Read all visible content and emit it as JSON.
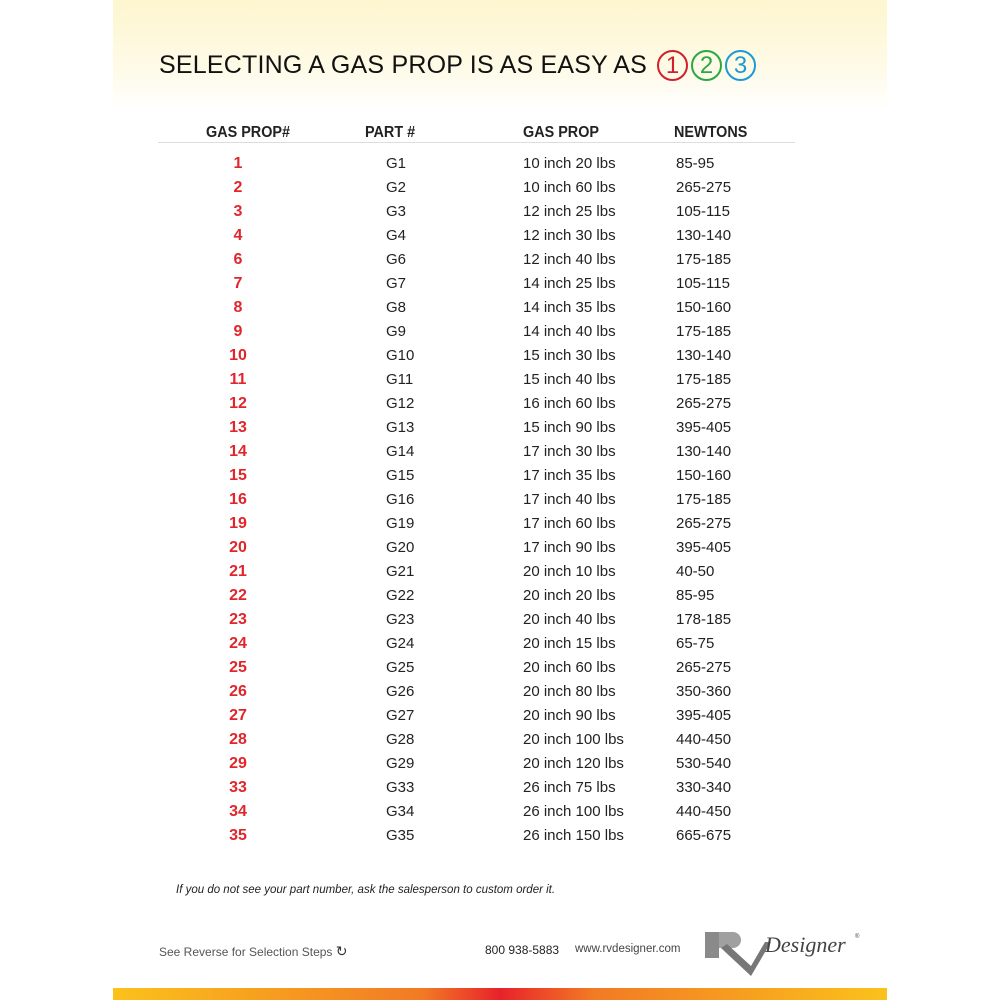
{
  "title": {
    "text": "SELECTING A GAS PROP IS AS EASY AS",
    "steps": [
      {
        "n": "1",
        "color": "#d0202a"
      },
      {
        "n": "2",
        "color": "#2aa844"
      },
      {
        "n": "3",
        "color": "#1c9ad6"
      }
    ]
  },
  "table": {
    "headers": [
      "GAS PROP#",
      "PART #",
      "GAS PROP",
      "NEWTONS"
    ],
    "rows": [
      [
        "1",
        "G1",
        "10 inch 20 lbs",
        "85-95"
      ],
      [
        "2",
        "G2",
        "10 inch 60 lbs",
        "265-275"
      ],
      [
        "3",
        "G3",
        "12 inch 25 lbs",
        "105-115"
      ],
      [
        "4",
        "G4",
        "12 inch 30 lbs",
        "130-140"
      ],
      [
        "6",
        "G6",
        "12 inch 40 lbs",
        "175-185"
      ],
      [
        "7",
        "G7",
        "14 inch 25 lbs",
        "105-115"
      ],
      [
        "8",
        "G8",
        "14 inch 35 lbs",
        "150-160"
      ],
      [
        "9",
        "G9",
        "14 inch 40 lbs",
        "175-185"
      ],
      [
        "10",
        "G10",
        "15 inch 30 lbs",
        "130-140"
      ],
      [
        "11",
        "G11",
        "15 inch 40 lbs",
        "175-185"
      ],
      [
        "12",
        "G12",
        "16 inch 60 lbs",
        "265-275"
      ],
      [
        "13",
        "G13",
        "15 inch 90 lbs",
        "395-405"
      ],
      [
        "14",
        "G14",
        "17 inch 30 lbs",
        "130-140"
      ],
      [
        "15",
        "G15",
        "17 inch 35 lbs",
        "150-160"
      ],
      [
        "16",
        "G16",
        "17 inch 40 lbs",
        "175-185"
      ],
      [
        "19",
        "G19",
        "17 inch 60 lbs",
        "265-275"
      ],
      [
        "20",
        "G20",
        "17 inch 90 lbs",
        "395-405"
      ],
      [
        "21",
        "G21",
        "20 inch 10 lbs",
        "40-50"
      ],
      [
        "22",
        "G22",
        "20 inch 20 lbs",
        "85-95"
      ],
      [
        "23",
        "G23",
        "20 inch 40 lbs",
        "178-185"
      ],
      [
        "24",
        "G24",
        "20 inch 15 lbs",
        "65-75"
      ],
      [
        "25",
        "G25",
        "20 inch 60 lbs",
        "265-275"
      ],
      [
        "26",
        "G26",
        "20 inch 80 lbs",
        "350-360"
      ],
      [
        "27",
        "G27",
        "20 inch 90 lbs",
        "395-405"
      ],
      [
        "28",
        "G28",
        "20 inch 100 lbs",
        "440-450"
      ],
      [
        "29",
        "G29",
        "20 inch 120 lbs",
        "530-540"
      ],
      [
        "33",
        "G33",
        "26 inch 75 lbs",
        "330-340"
      ],
      [
        "34",
        "G34",
        "26 inch 100 lbs",
        "440-450"
      ],
      [
        "35",
        "G35",
        "26 inch 150 lbs",
        "665-675"
      ]
    ]
  },
  "note": "If you do not see your part number, ask the salesperson to custom order it.",
  "footer": {
    "reverse": "See Reverse for Selection Steps",
    "reverse_icon": "rotate-arrow-icon",
    "phone": "800 938-5883",
    "url": "www.rvdesigner.com",
    "logo_text": "RV Designer®"
  }
}
